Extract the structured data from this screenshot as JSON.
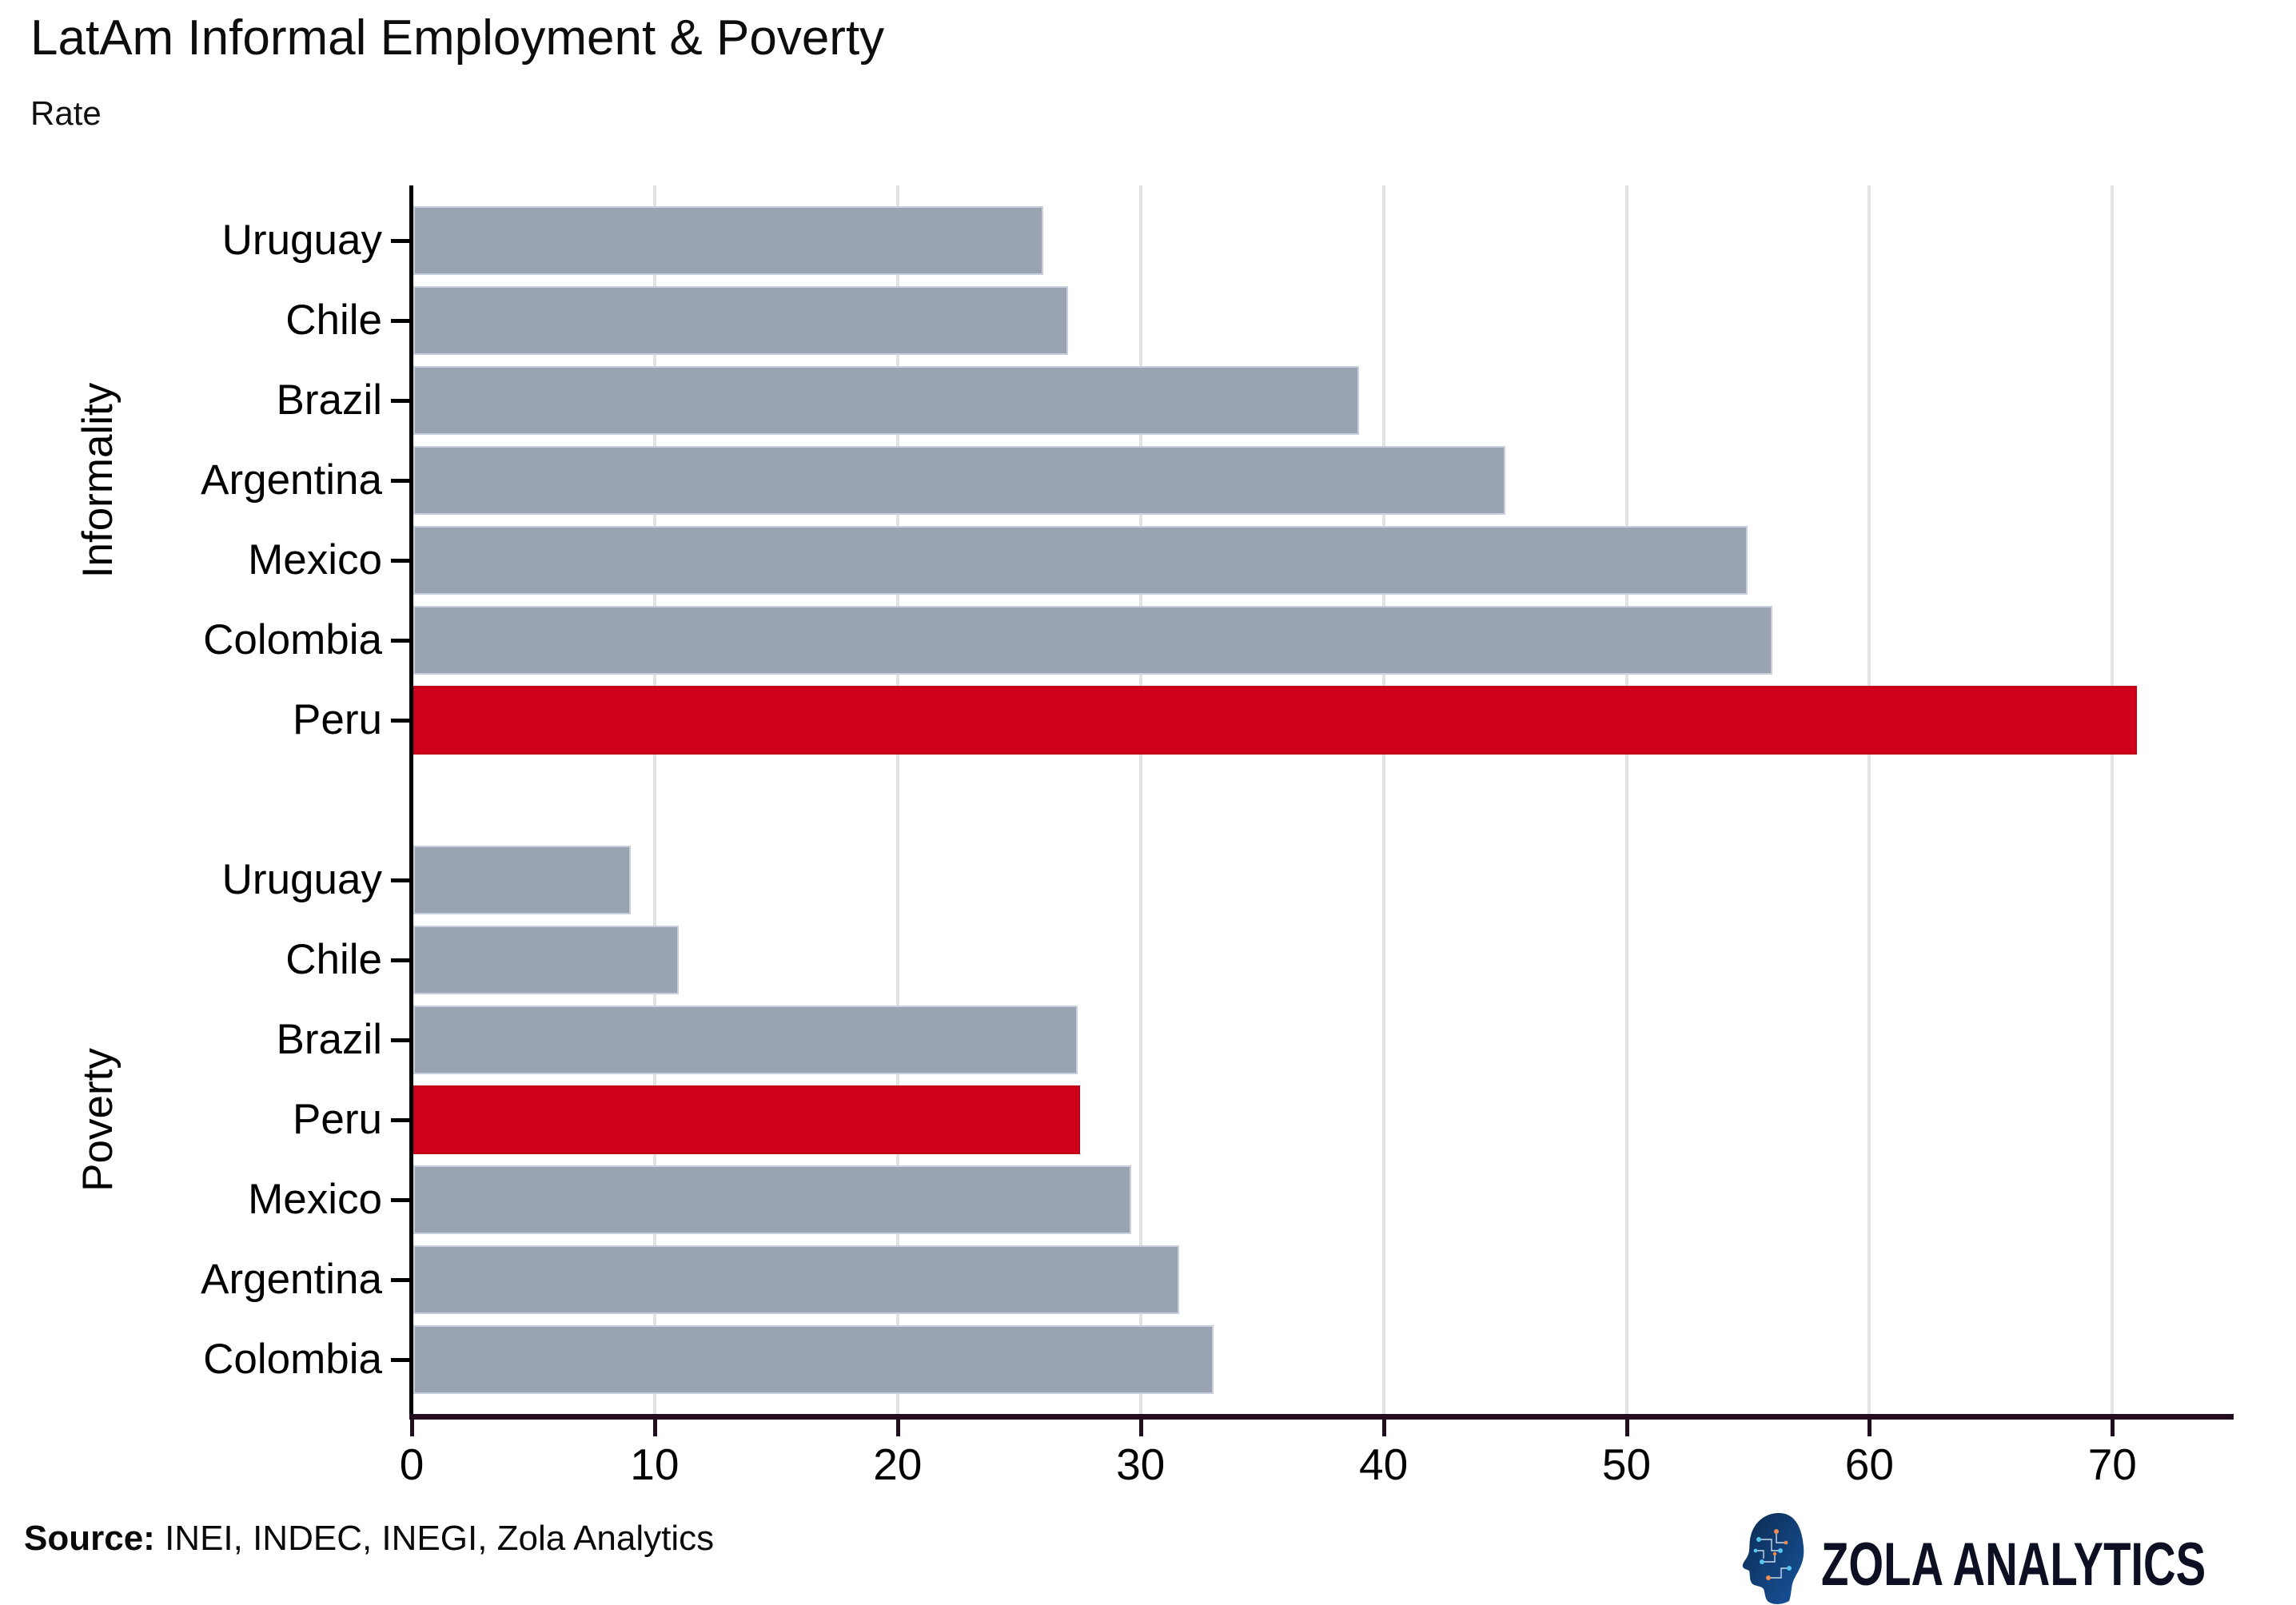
{
  "title": "LatAm Informal Employment & Poverty",
  "subtitle": "Rate",
  "source": {
    "label": "Source:",
    "text": "INEI, INDEC, INEGI, Zola Analytics"
  },
  "brand": {
    "name": "ZOLA ANALYTICS"
  },
  "colors": {
    "bar_default": "#99a3b2",
    "bar_highlight": "#d0021b",
    "gridline": "#e3e3e3",
    "y_axis": "#000000",
    "x_axis": "#220d1e",
    "background": "#ffffff"
  },
  "chart_data": {
    "type": "bar",
    "orientation": "horizontal",
    "title": "LatAm Informal Employment & Poverty",
    "subtitle": "Rate",
    "xlabel": "",
    "ylabel": "",
    "xlim": [
      0,
      75
    ],
    "xticks": [
      0,
      10,
      20,
      30,
      40,
      50,
      60,
      70
    ],
    "grid": "vertical-only",
    "legend": "none",
    "highlight_country": "Peru",
    "groups": [
      {
        "label": "Informality",
        "categories": [
          "Uruguay",
          "Chile",
          "Brazil",
          "Argentina",
          "Mexico",
          "Colombia",
          "Peru"
        ],
        "values": [
          26,
          27,
          39,
          45,
          55,
          56,
          71
        ],
        "highlight": [
          false,
          false,
          false,
          false,
          false,
          false,
          true
        ]
      },
      {
        "label": "Poverty",
        "categories": [
          "Uruguay",
          "Chile",
          "Brazil",
          "Peru",
          "Mexico",
          "Argentina",
          "Colombia"
        ],
        "values": [
          9,
          11,
          27.4,
          27.5,
          29.6,
          31.6,
          33
        ],
        "highlight": [
          false,
          false,
          false,
          true,
          false,
          false,
          false
        ]
      }
    ]
  }
}
